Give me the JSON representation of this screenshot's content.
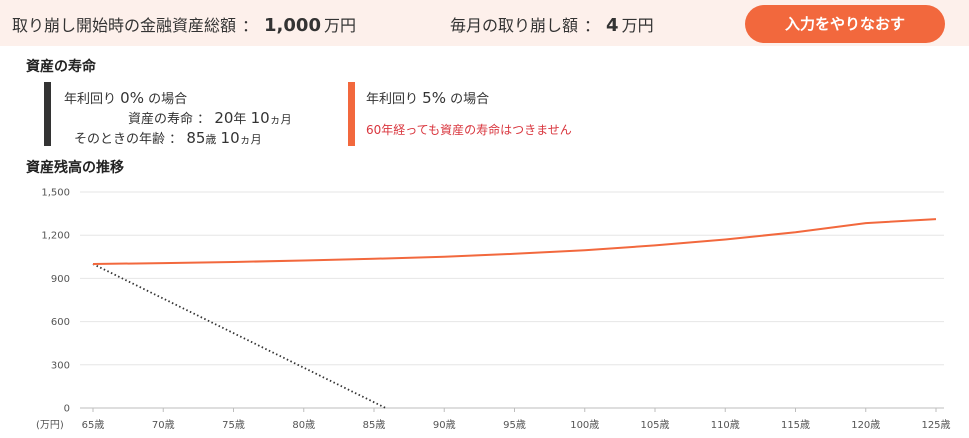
{
  "header": {
    "initial_label": "取り崩し開始時の金融資産総額",
    "colon": "：",
    "initial_value": "1,000",
    "initial_unit": "万円",
    "monthly_label": "毎月の取り崩し額",
    "monthly_value": "4",
    "monthly_unit": "万円",
    "redo_button": "入力をやりなおす"
  },
  "lifespan": {
    "title": "資産の寿命",
    "case0": {
      "label_prefix": "年利回り",
      "rate": "0%",
      "label_suffix": "の場合",
      "life_label": "資産の寿命",
      "colon": "：",
      "life_years": "20",
      "year_unit": "年",
      "life_months": "10",
      "month_unit": "ヵ月",
      "age_label": "そのときの年齢",
      "age_years": "85",
      "age_unit": "歳",
      "age_months": "10"
    },
    "case5": {
      "label_prefix": "年利回り",
      "rate": "5%",
      "label_suffix": "の場合",
      "note": "60年経っても資産の寿命はつきません"
    }
  },
  "colors": {
    "accent": "#f2683d",
    "dark": "#333333",
    "header_bg": "#fdf0eb",
    "note_red": "#d9363e"
  },
  "chart_data": {
    "type": "line",
    "title": "資産残高の推移",
    "ylabel": "(万円)",
    "xlabel": "",
    "ylim": [
      0,
      1500
    ],
    "xlim": [
      65,
      125
    ],
    "y_ticks": [
      0,
      300,
      600,
      900,
      1200,
      1500
    ],
    "y_tick_labels": [
      "0",
      "300",
      "600",
      "900",
      "1,200",
      "1,500"
    ],
    "x_ticks": [
      65,
      70,
      75,
      80,
      85,
      90,
      95,
      100,
      105,
      110,
      115,
      120,
      125
    ],
    "x_tick_labels": [
      "65歳",
      "70歳",
      "75歳",
      "80歳",
      "85歳",
      "90歳",
      "95歳",
      "100歳",
      "105歳",
      "110歳",
      "115歳",
      "120歳",
      "125歳"
    ],
    "grid": true,
    "series": [
      {
        "name": "年利回り 0%",
        "color": "#333333",
        "style": "dotted",
        "x": [
          65,
          85.83
        ],
        "y": [
          1000,
          0
        ]
      },
      {
        "name": "年利回り 5%",
        "color": "#f2683d",
        "style": "solid",
        "x": [
          65,
          70,
          75,
          80,
          85,
          90,
          95,
          100,
          105,
          110,
          115,
          120,
          125
        ],
        "y": [
          1000,
          1006,
          1014,
          1024,
          1036,
          1051,
          1071,
          1096,
          1129,
          1170,
          1221,
          1284,
          1312
        ]
      }
    ]
  }
}
